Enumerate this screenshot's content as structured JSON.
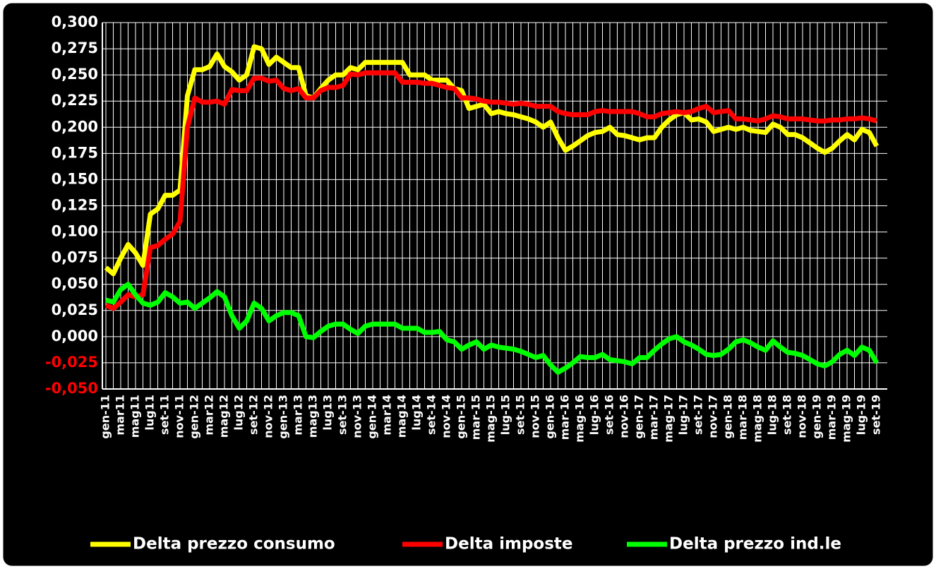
{
  "chart_data": {
    "type": "line",
    "categories": [
      "gen-11",
      null,
      "mar11",
      null,
      "mag11",
      null,
      "lug11",
      null,
      "set-11",
      null,
      "nov-11",
      null,
      "gen-12",
      null,
      "mar12",
      null,
      "mag12",
      null,
      "lug12",
      null,
      "set-12",
      null,
      "nov-12",
      null,
      "gen-13",
      null,
      "mar13",
      null,
      "mag13",
      null,
      "lug13",
      null,
      "set-13",
      null,
      "nov-13",
      null,
      "gen-14",
      null,
      "mar14",
      null,
      "mag14",
      null,
      "lug14",
      null,
      "set-14",
      null,
      "nov-14",
      null,
      "gen-15",
      null,
      "mar-15",
      null,
      "mag-15",
      null,
      "lug-15",
      null,
      "set-15",
      null,
      "nov-15",
      null,
      "gen-16",
      null,
      "mar-16",
      null,
      "mag-16",
      null,
      "lug-16",
      null,
      "set-16",
      null,
      "nov-16",
      null,
      "gen-17",
      null,
      "mar-17",
      null,
      "mag-17",
      null,
      "lug-17",
      null,
      "set-17",
      null,
      "nov-17",
      null,
      "gen-18",
      null,
      "mar-18",
      null,
      "mag-18",
      null,
      "lug-18",
      null,
      "set-18",
      null,
      "nov-18",
      null,
      "gen-19",
      null,
      "mar-19",
      null,
      "mag-19",
      null,
      "lug-19",
      null,
      "set-19"
    ],
    "series": [
      {
        "name": "Delta prezzo consumo",
        "color": "#ffff00",
        "values": [
          0.066,
          0.06,
          0.075,
          0.088,
          0.08,
          0.068,
          0.117,
          0.122,
          0.135,
          0.135,
          0.14,
          0.23,
          0.255,
          0.255,
          0.258,
          0.27,
          0.258,
          0.253,
          0.245,
          0.25,
          0.277,
          0.275,
          0.26,
          0.267,
          0.262,
          0.257,
          0.257,
          0.23,
          0.228,
          0.237,
          0.245,
          0.25,
          0.25,
          0.257,
          0.255,
          0.262,
          0.262,
          0.262,
          0.262,
          0.262,
          0.262,
          0.25,
          0.25,
          0.25,
          0.245,
          0.245,
          0.245,
          0.237,
          0.235,
          0.218,
          0.22,
          0.222,
          0.213,
          0.215,
          0.213,
          0.212,
          0.21,
          0.208,
          0.205,
          0.2,
          0.205,
          0.19,
          0.178,
          0.182,
          0.187,
          0.192,
          0.195,
          0.196,
          0.2,
          0.193,
          0.192,
          0.19,
          0.188,
          0.19,
          0.19,
          0.2,
          0.207,
          0.212,
          0.214,
          0.207,
          0.208,
          0.205,
          0.196,
          0.198,
          0.2,
          0.198,
          0.2,
          0.197,
          0.196,
          0.195,
          0.203,
          0.2,
          0.193,
          0.193,
          0.19,
          0.185,
          0.18,
          0.176,
          0.18,
          0.187,
          0.193,
          0.188,
          0.198,
          0.195,
          0.182
        ]
      },
      {
        "name": "Delta imposte",
        "color": "#ff0000",
        "values": [
          0.03,
          0.027,
          0.033,
          0.04,
          0.038,
          0.04,
          0.085,
          0.087,
          0.093,
          0.098,
          0.11,
          0.2,
          0.228,
          0.224,
          0.224,
          0.225,
          0.222,
          0.236,
          0.235,
          0.235,
          0.247,
          0.247,
          0.244,
          0.245,
          0.237,
          0.235,
          0.237,
          0.228,
          0.228,
          0.235,
          0.238,
          0.238,
          0.24,
          0.251,
          0.25,
          0.252,
          0.252,
          0.252,
          0.252,
          0.252,
          0.243,
          0.243,
          0.243,
          0.242,
          0.242,
          0.24,
          0.238,
          0.237,
          0.228,
          0.228,
          0.227,
          0.225,
          0.224,
          0.224,
          0.223,
          0.222,
          0.223,
          0.222,
          0.22,
          0.22,
          0.22,
          0.215,
          0.213,
          0.212,
          0.212,
          0.212,
          0.215,
          0.216,
          0.215,
          0.215,
          0.215,
          0.215,
          0.213,
          0.21,
          0.21,
          0.213,
          0.214,
          0.215,
          0.214,
          0.215,
          0.218,
          0.22,
          0.214,
          0.215,
          0.216,
          0.208,
          0.208,
          0.207,
          0.206,
          0.208,
          0.211,
          0.21,
          0.208,
          0.208,
          0.208,
          0.207,
          0.206,
          0.206,
          0.207,
          0.207,
          0.208,
          0.208,
          0.209,
          0.208,
          0.206
        ]
      },
      {
        "name": "Delta prezzo ind.le",
        "color": "#00ff00",
        "values": [
          0.035,
          0.033,
          0.045,
          0.05,
          0.04,
          0.032,
          0.03,
          0.033,
          0.042,
          0.038,
          0.032,
          0.033,
          0.027,
          0.032,
          0.037,
          0.043,
          0.038,
          0.02,
          0.008,
          0.015,
          0.032,
          0.027,
          0.015,
          0.02,
          0.023,
          0.023,
          0.02,
          0.0,
          -0.001,
          0.005,
          0.01,
          0.012,
          0.012,
          0.007,
          0.003,
          0.01,
          0.012,
          0.012,
          0.012,
          0.012,
          0.008,
          0.008,
          0.008,
          0.004,
          0.004,
          0.005,
          -0.003,
          -0.005,
          -0.012,
          -0.008,
          -0.005,
          -0.012,
          -0.008,
          -0.01,
          -0.011,
          -0.012,
          -0.014,
          -0.017,
          -0.02,
          -0.018,
          -0.027,
          -0.034,
          -0.03,
          -0.025,
          -0.019,
          -0.02,
          -0.02,
          -0.017,
          -0.022,
          -0.023,
          -0.024,
          -0.026,
          -0.02,
          -0.02,
          -0.013,
          -0.007,
          -0.002,
          0.0,
          -0.005,
          -0.008,
          -0.012,
          -0.017,
          -0.018,
          -0.017,
          -0.012,
          -0.005,
          -0.003,
          -0.006,
          -0.01,
          -0.013,
          -0.004,
          -0.01,
          -0.015,
          -0.016,
          -0.018,
          -0.022,
          -0.026,
          -0.028,
          -0.024,
          -0.017,
          -0.013,
          -0.018,
          -0.01,
          -0.013,
          -0.025
        ]
      }
    ],
    "ylim": [
      -0.05,
      0.3
    ],
    "yticks": [
      {
        "value": -0.05,
        "label": "-0,050"
      },
      {
        "value": -0.025,
        "label": "-0,025"
      },
      {
        "value": 0,
        "label": "0,000"
      },
      {
        "value": 0.025,
        "label": "0,025"
      },
      {
        "value": 0.05,
        "label": "0,050"
      },
      {
        "value": 0.075,
        "label": "0,075"
      },
      {
        "value": 0.1,
        "label": "0,100"
      },
      {
        "value": 0.125,
        "label": "0,125"
      },
      {
        "value": 0.15,
        "label": "0,150"
      },
      {
        "value": 0.175,
        "label": "0,175"
      },
      {
        "value": 0.2,
        "label": "0,200"
      },
      {
        "value": 0.225,
        "label": "0,225"
      },
      {
        "value": 0.25,
        "label": "0,250"
      },
      {
        "value": 0.275,
        "label": "0,275"
      },
      {
        "value": 0.3,
        "label": "0,300"
      }
    ],
    "negative_tick_color": "#ff0000",
    "grid": true,
    "legend": "bottom"
  }
}
